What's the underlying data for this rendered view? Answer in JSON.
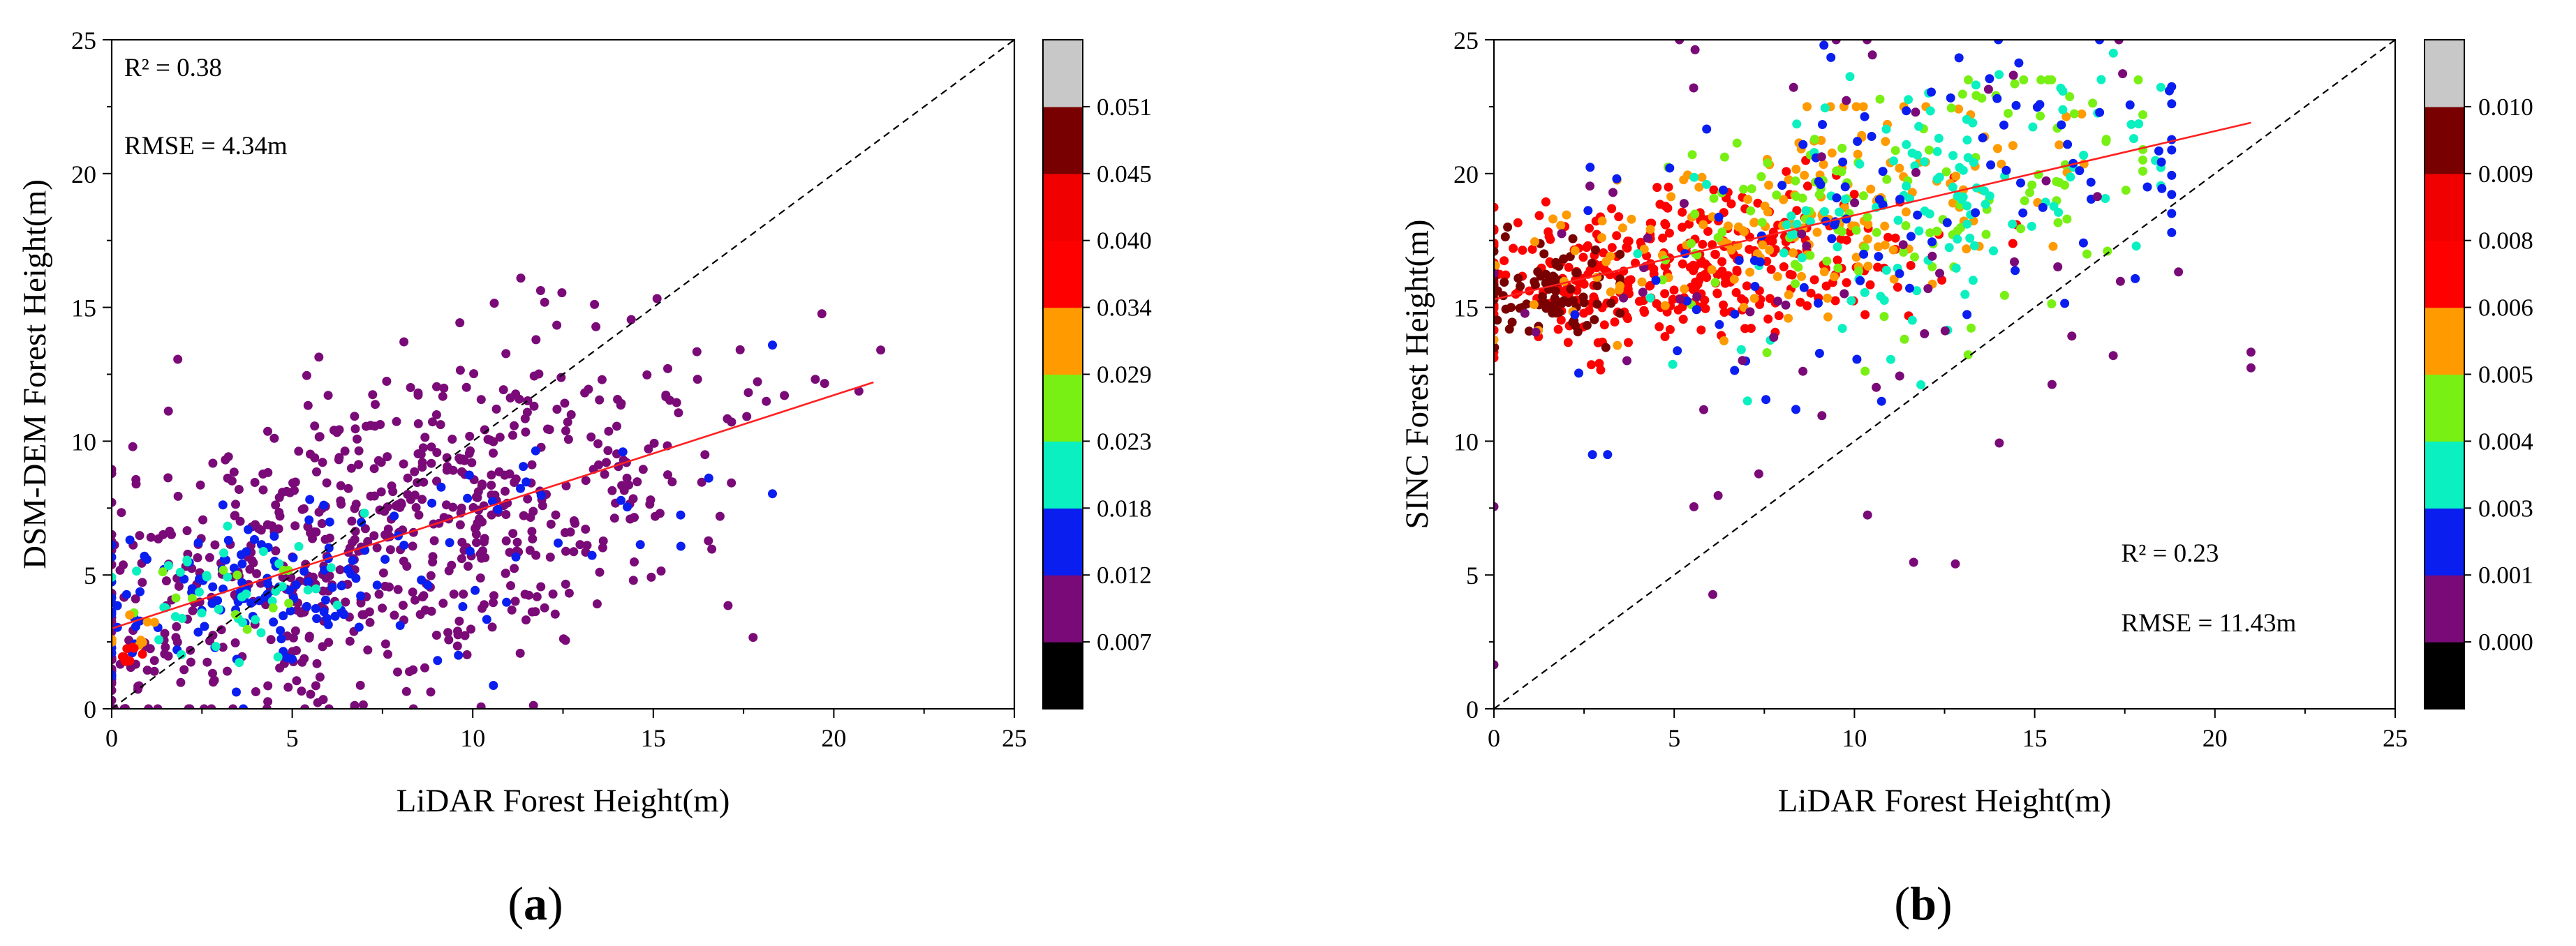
{
  "figure": {
    "panels": [
      "a",
      "b"
    ]
  },
  "chart_data": [
    {
      "type": "scatter",
      "panel": "a",
      "panel_label": "a",
      "xlabel": "LiDAR Forest Height(m)",
      "ylabel": "DSM-DEM Forest Height(m)",
      "xlim": [
        0,
        25
      ],
      "ylim": [
        0,
        25
      ],
      "x_ticks": [
        "0",
        "5",
        "10",
        "15",
        "20",
        "25"
      ],
      "y_ticks": [
        "0",
        "5",
        "10",
        "15",
        "20",
        "25"
      ],
      "annotations": {
        "r2": "R² = 0.38",
        "rmse": "RMSE = 4.34m"
      },
      "reference_line": {
        "label": "1:1",
        "from": [
          0,
          0
        ],
        "to": [
          25,
          25
        ],
        "style": "dashed",
        "color": "#000000"
      },
      "fit_line": {
        "from": [
          0,
          3.0
        ],
        "to": [
          21.1,
          12.2
        ],
        "color": "#ff2020"
      },
      "colorbar": {
        "colors": [
          "#000000",
          "#7a0a78",
          "#0a1ef0",
          "#0af0c0",
          "#78f014",
          "#ff9a00",
          "#ff0000",
          "#f00000",
          "#780000",
          "#c8c8c8"
        ],
        "tick_labels": [
          "0.007",
          "0.012",
          "0.018",
          "0.023",
          "0.029",
          "0.034",
          "0.040",
          "0.045",
          "0.051"
        ]
      },
      "clusters": [
        {
          "x": 6.2,
          "y": 5.0,
          "sx": 4.0,
          "sy": 3.0,
          "n": 400,
          "corr": 0.35,
          "xmin": 0,
          "xmax": 19.5,
          "ymin": 0,
          "ymax": 20,
          "color_index": 1
        },
        {
          "x": 10.5,
          "y": 8.5,
          "sx": 4.0,
          "sy": 3.2,
          "n": 260,
          "corr": 0.45,
          "xmin": 0,
          "xmax": 21.3,
          "ymin": 0,
          "ymax": 20,
          "color_index": 1
        },
        {
          "x": 1.0,
          "y": 4.0,
          "sx": 1.0,
          "sy": 3.5,
          "n": 50,
          "corr": 0.0,
          "xmin": 0,
          "xmax": 4,
          "ymin": 0,
          "ymax": 14,
          "color_index": 1
        },
        {
          "x": 4.5,
          "y": 4.6,
          "sx": 3.0,
          "sy": 1.9,
          "n": 130,
          "corr": 0.4,
          "xmin": 0,
          "xmax": 12,
          "ymin": 0,
          "ymax": 11,
          "color_index": 2
        },
        {
          "x": 12.0,
          "y": 7.6,
          "sx": 3.2,
          "sy": 2.2,
          "n": 28,
          "corr": 0.4,
          "xmin": 6,
          "xmax": 18.3,
          "ymin": 2,
          "ymax": 14,
          "color_index": 2
        },
        {
          "x": 3.0,
          "y": 4.3,
          "sx": 1.6,
          "sy": 1.3,
          "n": 40,
          "corr": 0.2,
          "xmin": 0,
          "xmax": 7,
          "ymin": 1,
          "ymax": 8,
          "color_index": 3
        },
        {
          "x": 3.0,
          "y": 4.3,
          "sx": 1.4,
          "sy": 1.2,
          "n": 12,
          "corr": 0.2,
          "xmin": 0,
          "xmax": 8,
          "ymin": 1,
          "ymax": 8,
          "color_index": 4
        },
        {
          "x": 0.5,
          "y": 3.0,
          "sx": 0.4,
          "sy": 0.5,
          "n": 8,
          "corr": 0.0,
          "xmin": 0,
          "xmax": 1.5,
          "ymin": 2,
          "ymax": 4.5,
          "color_index": 5
        },
        {
          "x": 0.4,
          "y": 2.2,
          "sx": 0.25,
          "sy": 0.35,
          "n": 8,
          "corr": 0.0,
          "xmin": 0,
          "xmax": 1.2,
          "ymin": 1.3,
          "ymax": 3.2,
          "color_index": 6
        }
      ]
    },
    {
      "type": "scatter",
      "panel": "b",
      "panel_label": "b",
      "xlabel": "LiDAR Forest Height(m)",
      "ylabel": "SINC Forest Height(m)",
      "xlim": [
        0,
        25
      ],
      "ylim": [
        0,
        25
      ],
      "x_ticks": [
        "0",
        "5",
        "10",
        "15",
        "20",
        "25"
      ],
      "y_ticks": [
        "0",
        "5",
        "10",
        "15",
        "20",
        "25"
      ],
      "annotations": {
        "r2": "R² = 0.23",
        "rmse": "RMSE = 11.43m"
      },
      "reference_line": {
        "label": "1:1",
        "from": [
          0,
          0
        ],
        "to": [
          25,
          25
        ],
        "style": "dashed",
        "color": "#000000"
      },
      "fit_line": {
        "from": [
          0,
          15.3
        ],
        "to": [
          21.0,
          21.9
        ],
        "color": "#ff2020"
      },
      "colorbar": {
        "colors": [
          "#000000",
          "#7a0a78",
          "#0a1ef0",
          "#0af0c0",
          "#78f014",
          "#ff9a00",
          "#ff0000",
          "#f00000",
          "#780000",
          "#c8c8c8"
        ],
        "tick_labels": [
          "0.000",
          "0.001",
          "0.003",
          "0.004",
          "0.005",
          "0.006",
          "0.008",
          "0.009",
          "0.010"
        ]
      },
      "clusters": [
        {
          "x": 5.0,
          "y": 16.5,
          "sx": 3.2,
          "sy": 1.5,
          "n": 360,
          "corr": 0.35,
          "xmin": 0,
          "xmax": 14.5,
          "ymin": 12,
          "ymax": 21.5,
          "color_index": 6
        },
        {
          "x": 1.5,
          "y": 15.7,
          "sx": 0.85,
          "sy": 1.1,
          "n": 90,
          "corr": 0.0,
          "xmin": 0,
          "xmax": 3.5,
          "ymin": 13.5,
          "ymax": 18,
          "color_index": 8
        },
        {
          "x": 8.0,
          "y": 18.3,
          "sx": 3.5,
          "sy": 2.1,
          "n": 170,
          "corr": 0.45,
          "xmin": 0,
          "xmax": 17,
          "ymin": 11.5,
          "ymax": 22.5,
          "color_index": 5
        },
        {
          "x": 11.0,
          "y": 18.8,
          "sx": 4.2,
          "sy": 2.6,
          "n": 130,
          "corr": 0.45,
          "xmin": 0,
          "xmax": 18,
          "ymin": 11,
          "ymax": 23.5,
          "color_index": 4
        },
        {
          "x": 12.0,
          "y": 18.7,
          "sx": 4.0,
          "sy": 3.0,
          "n": 120,
          "corr": 0.45,
          "xmin": 0,
          "xmax": 18.5,
          "ymin": 10.5,
          "ymax": 24.5,
          "color_index": 3
        },
        {
          "x": 12.0,
          "y": 19.0,
          "sx": 5.0,
          "sy": 3.8,
          "n": 110,
          "corr": 0.4,
          "xmin": 0,
          "xmax": 18.8,
          "ymin": 9.5,
          "ymax": 25,
          "color_index": 2
        },
        {
          "x": 9.0,
          "y": 16.0,
          "sx": 6.0,
          "sy": 5.5,
          "n": 70,
          "corr": 0.3,
          "xmin": 0,
          "xmax": 21,
          "ymin": 1.5,
          "ymax": 25,
          "color_index": 1
        }
      ]
    }
  ]
}
